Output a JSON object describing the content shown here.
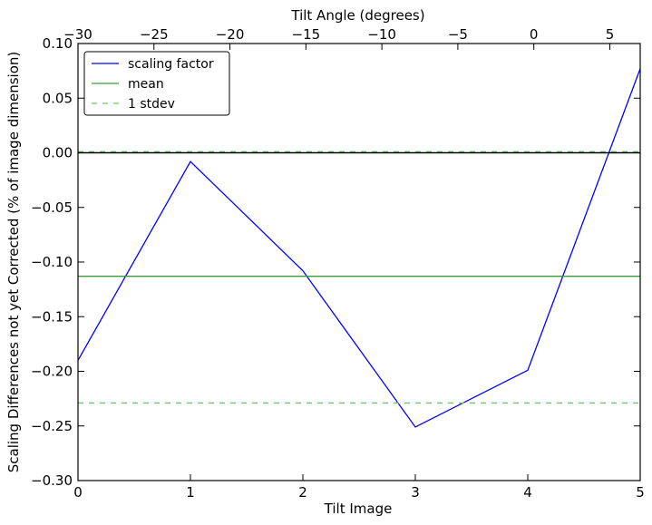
{
  "chart_data": {
    "type": "line",
    "xlabel": "Tilt Image",
    "ylabel": "Scaling Differences not yet Corrected (% of image dimension)",
    "top_xlabel": "Tilt Angle (degrees)",
    "xlim": [
      0,
      5
    ],
    "ylim": [
      -0.3,
      0.1
    ],
    "top_xlim": [
      -30,
      7
    ],
    "x_ticks": [
      "0",
      "1",
      "2",
      "3",
      "4",
      "5"
    ],
    "y_ticks": [
      "0.10",
      "0.05",
      "0.00",
      "−0.05",
      "−0.10",
      "−0.15",
      "−0.20",
      "−0.25",
      "−0.30"
    ],
    "top_ticks": [
      "−30",
      "−25",
      "−20",
      "−15",
      "−10",
      "−5",
      "0",
      "5"
    ],
    "grid": false,
    "legend_position": "top-left",
    "series": [
      {
        "name": "scaling factor",
        "color": "#0000ff",
        "style": "solid",
        "x": [
          0,
          1,
          2,
          3,
          4,
          5
        ],
        "values": [
          -0.19,
          -0.008,
          -0.108,
          -0.251,
          -0.199,
          0.077
        ]
      },
      {
        "name": "mean",
        "color": "#3a9a3a",
        "style": "solid",
        "x": [
          0,
          5
        ],
        "values": [
          -0.113,
          -0.113
        ]
      },
      {
        "name": "1 stdev",
        "color": "#6fc46f",
        "style": "dashed",
        "x": [
          0,
          5
        ],
        "values": [
          -0.229,
          -0.229
        ],
        "x2": [
          0,
          5
        ],
        "values2": [
          0.001,
          0.001
        ]
      }
    ],
    "reference_line": {
      "value": 0.0,
      "color": "#000000"
    }
  }
}
